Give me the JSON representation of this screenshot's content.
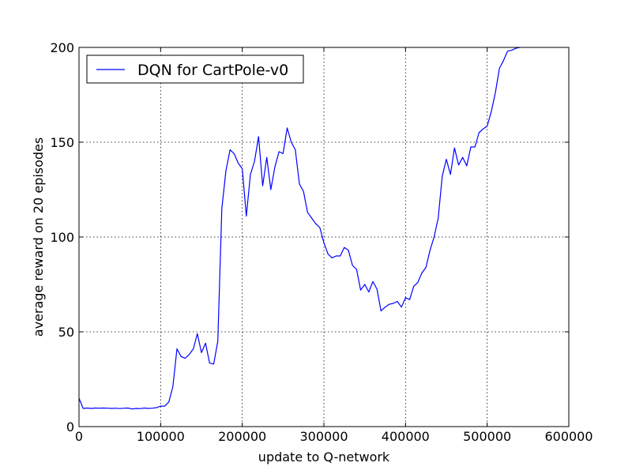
{
  "chart_data": {
    "type": "line",
    "title": "",
    "xlabel": "update to Q-network",
    "ylabel": "average reward on 20 episodes",
    "xlim": [
      0,
      600000
    ],
    "ylim": [
      0,
      200
    ],
    "x_ticks": [
      0,
      100000,
      200000,
      300000,
      400000,
      500000,
      600000
    ],
    "y_ticks": [
      0,
      50,
      100,
      150,
      200
    ],
    "x_tick_labels": [
      "0",
      "100000",
      "200000",
      "300000",
      "400000",
      "500000",
      "600000"
    ],
    "y_tick_labels": [
      "0",
      "50",
      "100",
      "150",
      "200"
    ],
    "grid": true,
    "legend_position": "upper-left",
    "series": [
      {
        "name": "DQN for CartPole-v0",
        "color": "#0000ff",
        "x": [
          0,
          5000,
          10000,
          15000,
          20000,
          25000,
          30000,
          35000,
          40000,
          45000,
          50000,
          55000,
          60000,
          65000,
          70000,
          75000,
          80000,
          85000,
          90000,
          95000,
          100000,
          105000,
          110000,
          115000,
          120000,
          125000,
          130000,
          135000,
          140000,
          145000,
          150000,
          155000,
          160000,
          165000,
          170000,
          175000,
          180000,
          185000,
          190000,
          195000,
          200000,
          205000,
          210000,
          215000,
          220000,
          225000,
          230000,
          235000,
          240000,
          245000,
          250000,
          255000,
          260000,
          265000,
          270000,
          275000,
          280000,
          285000,
          290000,
          295000,
          300000,
          305000,
          310000,
          315000,
          320000,
          325000,
          330000,
          335000,
          340000,
          345000,
          350000,
          355000,
          360000,
          365000,
          370000,
          375000,
          380000,
          385000,
          390000,
          395000,
          400000,
          405000,
          410000,
          415000,
          420000,
          425000,
          430000,
          435000,
          440000,
          445000,
          450000,
          455000,
          460000,
          465000,
          470000,
          475000,
          480000,
          485000,
          490000,
          495000,
          500000,
          505000,
          510000,
          515000,
          520000,
          525000,
          530000,
          535000,
          540000
        ],
        "y": [
          15,
          9.6,
          9.8,
          9.6,
          9.8,
          9.7,
          9.8,
          9.7,
          9.6,
          9.7,
          9.5,
          9.7,
          9.8,
          9.3,
          9.6,
          9.5,
          9.8,
          9.6,
          9.7,
          10,
          10.8,
          10.8,
          13,
          21,
          41,
          37,
          36,
          38,
          41,
          49,
          39,
          44,
          33.5,
          33,
          45,
          115,
          135,
          146,
          144,
          139,
          136,
          111,
          133,
          140,
          153,
          127,
          142,
          125,
          137,
          145,
          144,
          157.5,
          150,
          146,
          128,
          124,
          113,
          110,
          107,
          105,
          97,
          91,
          89,
          90,
          90,
          94.5,
          93,
          85,
          83,
          72,
          75,
          71,
          76.5,
          72.5,
          61,
          63,
          64.5,
          65,
          66,
          63,
          68,
          67,
          74,
          76,
          81,
          84,
          93,
          100,
          110,
          132,
          141,
          133,
          147,
          138,
          142,
          137.5,
          147.5,
          147.5,
          155,
          157,
          158.5,
          166,
          176,
          189,
          193,
          198,
          198.5,
          199.5,
          200
        ]
      }
    ]
  }
}
